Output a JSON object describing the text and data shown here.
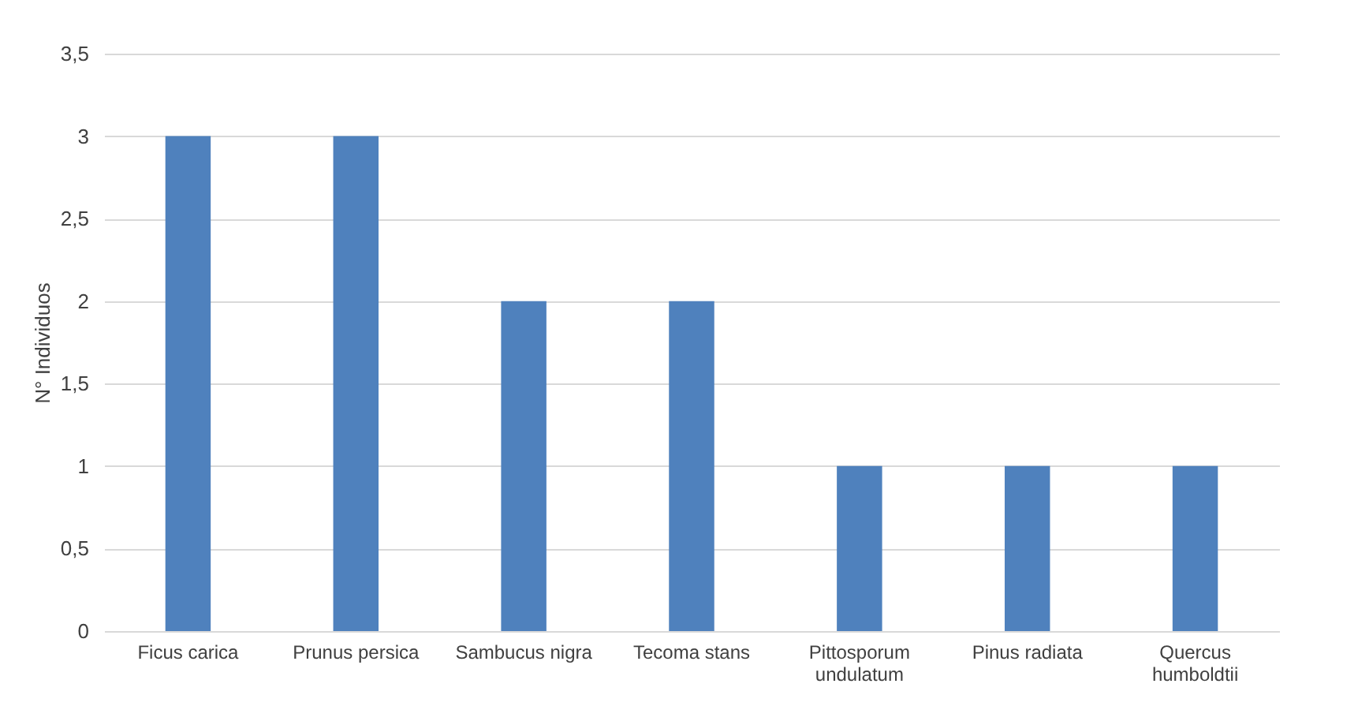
{
  "chart_data": {
    "type": "bar",
    "ylabel": "N° Individuos",
    "categories": [
      "Ficus carica",
      "Prunus persica",
      "Sambucus nigra",
      "Tecoma stans",
      "Pittosporum undulatum",
      "Pinus radiata",
      "Quercus humboldtii"
    ],
    "values": [
      3,
      3,
      2,
      2,
      1,
      1,
      1
    ],
    "color": "#4f81bd",
    "ylim": [
      0,
      3.5
    ],
    "yticks": [
      0,
      {
        "value": 0.5,
        "label": "0,5"
      },
      1,
      {
        "value": 1.5,
        "label": "1,5"
      },
      2,
      {
        "value": 2.5,
        "label": "2,5"
      },
      3,
      {
        "value": 3.5,
        "label": "3,5"
      }
    ],
    "grid": "y"
  }
}
